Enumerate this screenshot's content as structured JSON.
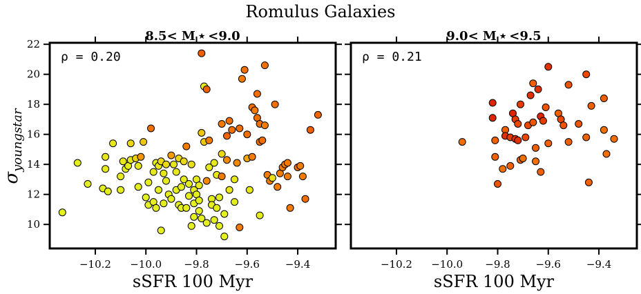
{
  "figure": {
    "suptitle": "Romulus Galaxies",
    "ylabel_symbol": "σ",
    "ylabel_subscript": "youngstar",
    "xlabel": "sSFR 100 Myr"
  },
  "chart_data": [
    {
      "type": "scatter",
      "title": "8.5< M ⋆ <9.0",
      "annotation": "ρ = 0.20",
      "xlabel": "sSFR 100 Myr",
      "ylabel": "σ youngstar",
      "xlim": [
        -10.38,
        -9.25
      ],
      "ylim": [
        8.4,
        22.1
      ],
      "xticks": [
        -10.2,
        -10.0,
        -9.8,
        -9.6,
        -9.4
      ],
      "xtick_labels": [
        "−10.2",
        "−10.0",
        "−9.8",
        "−9.6",
        "−9.4"
      ],
      "yticks": [
        10,
        12,
        14,
        16,
        18,
        20,
        22
      ],
      "ytick_labels": [
        "10",
        "12",
        "14",
        "16",
        "18",
        "20",
        "22"
      ],
      "grid": false,
      "colormap": "yellow-to-red",
      "points": [
        [
          -10.33,
          10.8,
          0.92
        ],
        [
          -10.27,
          14.1,
          0.9
        ],
        [
          -10.23,
          12.7,
          0.92
        ],
        [
          -10.17,
          12.4,
          0.9
        ],
        [
          -10.16,
          13.7,
          0.88
        ],
        [
          -10.16,
          14.5,
          0.85
        ],
        [
          -10.15,
          12.2,
          0.9
        ],
        [
          -10.13,
          15.4,
          0.85
        ],
        [
          -10.1,
          12.3,
          0.9
        ],
        [
          -10.1,
          13.2,
          0.88
        ],
        [
          -10.09,
          14.2,
          0.85
        ],
        [
          -10.08,
          13.7,
          0.9
        ],
        [
          -10.07,
          13.9,
          0.88
        ],
        [
          -10.06,
          14.3,
          0.85
        ],
        [
          -10.06,
          15.4,
          0.8
        ],
        [
          -10.04,
          14.4,
          0.78
        ],
        [
          -10.03,
          12.5,
          0.9
        ],
        [
          -10.03,
          13.9,
          0.85
        ],
        [
          -10.02,
          14.5,
          0.6
        ],
        [
          -10.01,
          15.5,
          0.75
        ],
        [
          -10.0,
          11.8,
          0.92
        ],
        [
          -9.99,
          11.3,
          0.92
        ],
        [
          -9.99,
          12.8,
          0.9
        ],
        [
          -9.98,
          16.4,
          0.45
        ],
        [
          -9.97,
          11.5,
          0.92
        ],
        [
          -9.97,
          13.5,
          0.88
        ],
        [
          -9.96,
          14.1,
          0.88
        ],
        [
          -9.96,
          11.1,
          0.92
        ],
        [
          -9.95,
          13.9,
          0.85
        ],
        [
          -9.95,
          12.3,
          0.9
        ],
        [
          -9.94,
          9.6,
          0.92
        ],
        [
          -9.94,
          14.2,
          0.8
        ],
        [
          -9.93,
          11.4,
          0.9
        ],
        [
          -9.93,
          13.4,
          0.85
        ],
        [
          -9.92,
          12.9,
          0.88
        ],
        [
          -9.92,
          14.0,
          0.8
        ],
        [
          -9.91,
          12.0,
          0.9
        ],
        [
          -9.9,
          14.6,
          0.62
        ],
        [
          -9.9,
          11.7,
          0.9
        ],
        [
          -9.89,
          14.0,
          0.85
        ],
        [
          -9.88,
          12.3,
          0.9
        ],
        [
          -9.88,
          13.5,
          0.85
        ],
        [
          -9.87,
          14.4,
          0.8
        ],
        [
          -9.87,
          11.3,
          0.9
        ],
        [
          -9.86,
          12.5,
          0.9
        ],
        [
          -9.86,
          11.1,
          0.92
        ],
        [
          -9.85,
          13.0,
          0.88
        ],
        [
          -9.85,
          14.2,
          0.8
        ],
        [
          -9.84,
          11.1,
          0.9
        ],
        [
          -9.84,
          15.2,
          0.5
        ],
        [
          -9.83,
          11.9,
          0.9
        ],
        [
          -9.83,
          12.7,
          0.9
        ],
        [
          -9.82,
          9.9,
          0.92
        ],
        [
          -9.82,
          14.0,
          0.82
        ],
        [
          -9.81,
          12.3,
          0.88
        ],
        [
          -9.81,
          11.4,
          0.92
        ],
        [
          -9.81,
          10.5,
          0.92
        ],
        [
          -9.8,
          13.0,
          0.88
        ],
        [
          -9.8,
          12.0,
          0.9
        ],
        [
          -9.79,
          12.6,
          0.88
        ],
        [
          -9.79,
          11.6,
          0.9
        ],
        [
          -9.79,
          10.9,
          0.92
        ],
        [
          -9.78,
          10.4,
          0.92
        ],
        [
          -9.78,
          16.1,
          0.75
        ],
        [
          -9.78,
          21.4,
          0.4
        ],
        [
          -9.77,
          19.2,
          0.85
        ],
        [
          -9.77,
          15.5,
          0.75
        ],
        [
          -9.76,
          10.1,
          0.92
        ],
        [
          -9.76,
          12.9,
          0.55
        ],
        [
          -9.76,
          19.0,
          0.4
        ],
        [
          -9.75,
          13.8,
          0.88
        ],
        [
          -9.75,
          15.6,
          0.5
        ],
        [
          -9.74,
          11.7,
          0.9
        ],
        [
          -9.74,
          11.3,
          0.9
        ],
        [
          -9.73,
          10.3,
          0.92
        ],
        [
          -9.73,
          14.1,
          0.88
        ],
        [
          -9.72,
          11.1,
          0.9
        ],
        [
          -9.72,
          13.3,
          0.85
        ],
        [
          -9.71,
          9.9,
          0.92
        ],
        [
          -9.71,
          11.8,
          0.9
        ],
        [
          -9.7,
          14.7,
          0.8
        ],
        [
          -9.7,
          16.7,
          0.5
        ],
        [
          -9.7,
          13.2,
          0.5
        ],
        [
          -9.69,
          9.2,
          0.92
        ],
        [
          -9.69,
          10.7,
          0.92
        ],
        [
          -9.68,
          14.3,
          0.55
        ],
        [
          -9.68,
          15.9,
          0.42
        ],
        [
          -9.67,
          16.9,
          0.45
        ],
        [
          -9.67,
          12.3,
          0.85
        ],
        [
          -9.66,
          16.3,
          0.45
        ],
        [
          -9.65,
          13.0,
          0.85
        ],
        [
          -9.65,
          11.5,
          0.9
        ],
        [
          -9.64,
          14.1,
          0.55
        ],
        [
          -9.63,
          9.8,
          0.5
        ],
        [
          -9.63,
          16.4,
          0.45
        ],
        [
          -9.62,
          19.7,
          0.5
        ],
        [
          -9.61,
          20.3,
          0.45
        ],
        [
          -9.6,
          16.0,
          0.45
        ],
        [
          -9.6,
          14.4,
          0.65
        ],
        [
          -9.59,
          12.3,
          0.85
        ],
        [
          -9.58,
          17.8,
          0.45
        ],
        [
          -9.58,
          14.5,
          0.5
        ],
        [
          -9.57,
          17.6,
          0.5
        ],
        [
          -9.56,
          17.1,
          0.45
        ],
        [
          -9.56,
          18.7,
          0.45
        ],
        [
          -9.55,
          16.7,
          0.45
        ],
        [
          -9.55,
          15.5,
          0.45
        ],
        [
          -9.55,
          10.6,
          0.88
        ],
        [
          -9.54,
          15.6,
          0.45
        ],
        [
          -9.53,
          16.6,
          0.5
        ],
        [
          -9.53,
          20.6,
          0.45
        ],
        [
          -9.52,
          13.3,
          0.5
        ],
        [
          -9.51,
          12.9,
          0.5
        ],
        [
          -9.5,
          13.1,
          0.82
        ],
        [
          -9.49,
          18.0,
          0.45
        ],
        [
          -9.48,
          12.5,
          0.5
        ],
        [
          -9.47,
          13.4,
          0.5
        ],
        [
          -9.46,
          13.8,
          0.5
        ],
        [
          -9.45,
          14.0,
          0.5
        ],
        [
          -9.44,
          14.1,
          0.5
        ],
        [
          -9.44,
          13.2,
          0.5
        ],
        [
          -9.43,
          11.1,
          0.5
        ],
        [
          -9.4,
          13.8,
          0.45
        ],
        [
          -9.39,
          13.9,
          0.5
        ],
        [
          -9.38,
          13.2,
          0.5
        ],
        [
          -9.37,
          11.7,
          0.45
        ],
        [
          -9.35,
          16.3,
          0.4
        ],
        [
          -9.32,
          17.3,
          0.42
        ]
      ]
    },
    {
      "type": "scatter",
      "title": "9.0< M ⋆ <9.5",
      "annotation": "ρ = 0.21",
      "xlabel": "sSFR 100 Myr",
      "ylabel": "",
      "xlim": [
        -10.38,
        -9.25
      ],
      "ylim": [
        8.4,
        22.1
      ],
      "xticks": [
        -10.2,
        -10.0,
        -9.8,
        -9.6,
        -9.4
      ],
      "xtick_labels": [
        "−10.2",
        "−10.0",
        "−9.8",
        "−9.6",
        "−9.4"
      ],
      "yticks": [
        10,
        12,
        14,
        16,
        18,
        20,
        22
      ],
      "ytick_labels": [],
      "grid": false,
      "colormap": "yellow-to-red",
      "points": [
        [
          -9.94,
          15.5,
          0.45
        ],
        [
          -9.82,
          18.1,
          0.15
        ],
        [
          -9.82,
          17.1,
          0.15
        ],
        [
          -9.81,
          15.6,
          0.4
        ],
        [
          -9.81,
          14.5,
          0.4
        ],
        [
          -9.8,
          12.7,
          0.35
        ],
        [
          -9.78,
          13.7,
          0.45
        ],
        [
          -9.77,
          16.3,
          0.4
        ],
        [
          -9.77,
          15.9,
          0.2
        ],
        [
          -9.75,
          15.8,
          0.25
        ],
        [
          -9.75,
          13.9,
          0.4
        ],
        [
          -9.74,
          17.4,
          0.15
        ],
        [
          -9.73,
          17.0,
          0.25
        ],
        [
          -9.73,
          15.7,
          0.2
        ],
        [
          -9.72,
          16.7,
          0.3
        ],
        [
          -9.72,
          15.6,
          0.2
        ],
        [
          -9.71,
          14.3,
          0.4
        ],
        [
          -9.71,
          18.0,
          0.25
        ],
        [
          -9.7,
          14.4,
          0.45
        ],
        [
          -9.69,
          15.8,
          0.3
        ],
        [
          -9.68,
          16.6,
          0.3
        ],
        [
          -9.67,
          18.6,
          0.2
        ],
        [
          -9.66,
          19.4,
          0.4
        ],
        [
          -9.66,
          16.8,
          0.35
        ],
        [
          -9.65,
          15.1,
          0.4
        ],
        [
          -9.65,
          14.2,
          0.45
        ],
        [
          -9.64,
          19.0,
          0.2
        ],
        [
          -9.63,
          17.2,
          0.15
        ],
        [
          -9.63,
          13.5,
          0.4
        ],
        [
          -9.62,
          16.9,
          0.25
        ],
        [
          -9.61,
          17.8,
          0.35
        ],
        [
          -9.6,
          15.4,
          0.4
        ],
        [
          -9.6,
          20.5,
          0.2
        ],
        [
          -9.56,
          17.4,
          0.4
        ],
        [
          -9.55,
          17.0,
          0.3
        ],
        [
          -9.54,
          16.6,
          0.35
        ],
        [
          -9.52,
          19.3,
          0.35
        ],
        [
          -9.52,
          15.5,
          0.4
        ],
        [
          -9.48,
          16.7,
          0.35
        ],
        [
          -9.45,
          20.0,
          0.3
        ],
        [
          -9.45,
          15.8,
          0.4
        ],
        [
          -9.44,
          12.8,
          0.4
        ],
        [
          -9.43,
          17.9,
          0.4
        ],
        [
          -9.38,
          18.4,
          0.4
        ],
        [
          -9.38,
          16.3,
          0.45
        ],
        [
          -9.37,
          14.7,
          0.45
        ],
        [
          -9.34,
          15.7,
          0.45
        ]
      ]
    }
  ]
}
